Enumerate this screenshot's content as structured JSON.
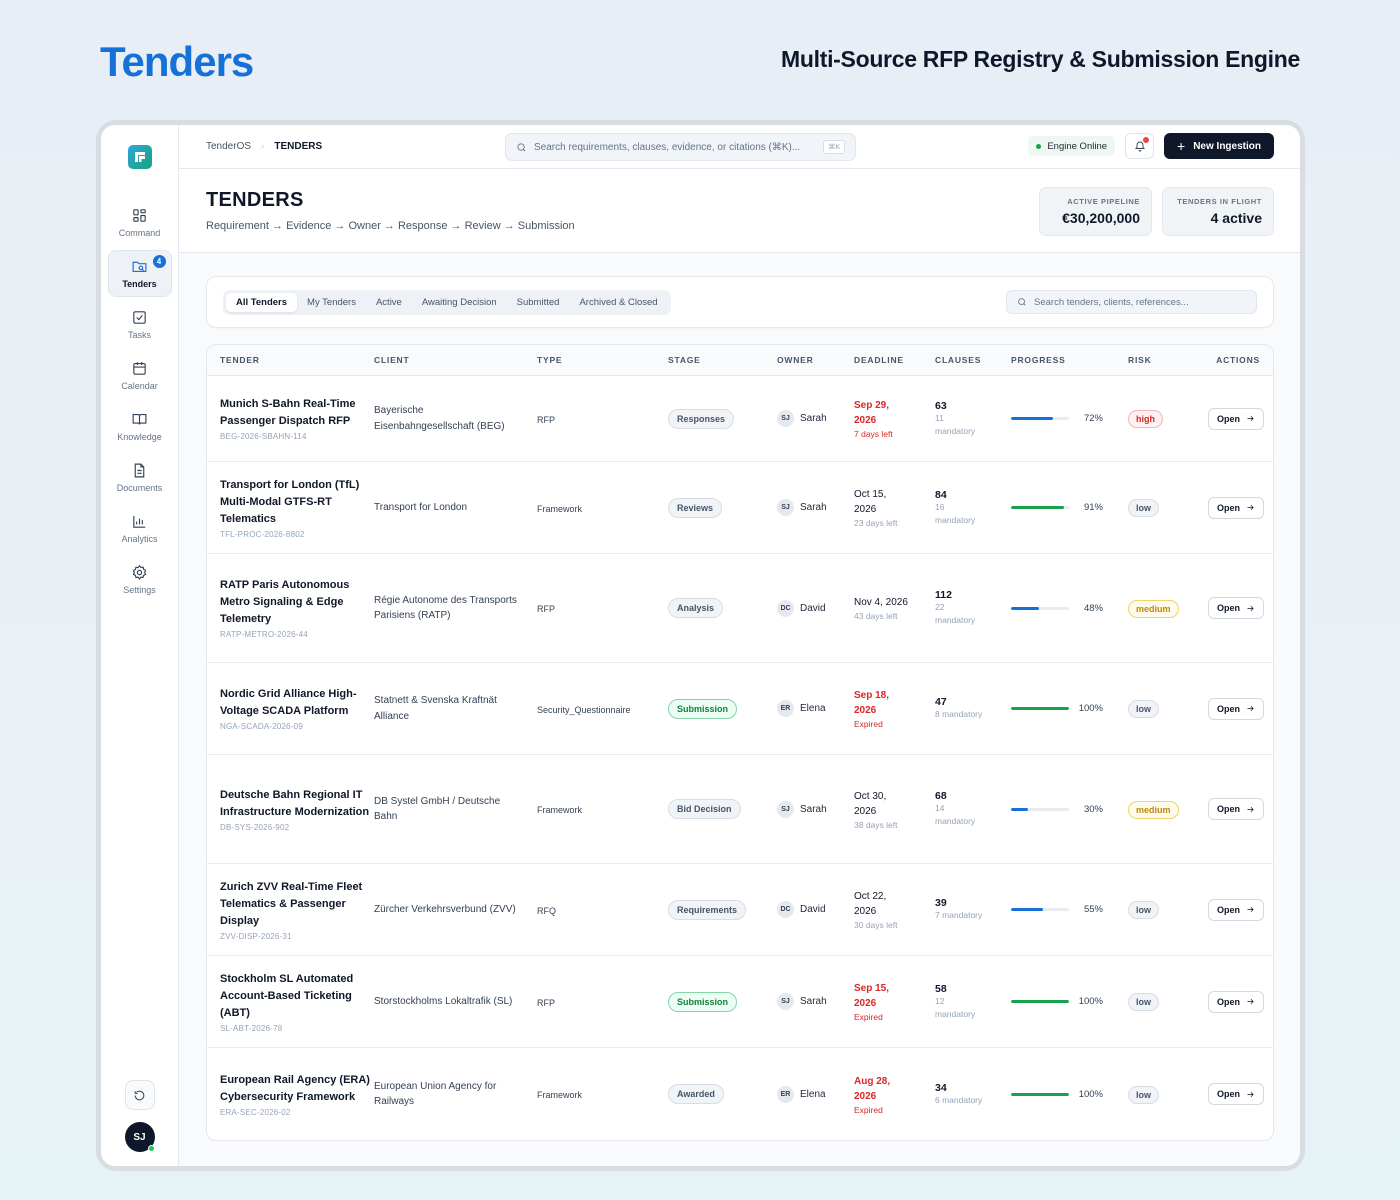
{
  "hero": {
    "title": "Tenders",
    "subtitle": "Multi-Source RFP Registry & Submission Engine"
  },
  "sidebar": {
    "items": [
      {
        "label": "Command",
        "icon": "grid-icon"
      },
      {
        "label": "Tenders",
        "icon": "folder-search-icon",
        "badge": "4",
        "active": true
      },
      {
        "label": "Tasks",
        "icon": "checkbox-icon"
      },
      {
        "label": "Calendar",
        "icon": "calendar-icon"
      },
      {
        "label": "Knowledge",
        "icon": "book-icon"
      },
      {
        "label": "Documents",
        "icon": "document-icon"
      },
      {
        "label": "Analytics",
        "icon": "bar-chart-icon"
      },
      {
        "label": "Settings",
        "icon": "gear-icon"
      }
    ],
    "user_initials": "SJ"
  },
  "topbar": {
    "breadcrumb_root": "TenderOS",
    "breadcrumb_current": "TENDERS",
    "search_placeholder": "Search requirements, clauses, evidence, or citations (⌘K)...",
    "search_shortcut": "⌘K",
    "engine_status": "Engine Online",
    "new_button": "New Ingestion"
  },
  "header": {
    "title": "TENDERS",
    "flow": "Requirement → Evidence → Owner → Response → Review → Submission",
    "kpis": [
      {
        "label": "ACTIVE PIPELINE",
        "value": "€30,200,000"
      },
      {
        "label": "TENDERS IN FLIGHT",
        "value": "4 active"
      }
    ]
  },
  "filters": {
    "tabs": [
      "All Tenders",
      "My Tenders",
      "Active",
      "Awaiting Decision",
      "Submitted",
      "Archived & Closed"
    ],
    "active_tab": "All Tenders",
    "search_placeholder": "Search tenders, clients, references..."
  },
  "table": {
    "columns": [
      "TENDER",
      "CLIENT",
      "TYPE",
      "STAGE",
      "OWNER",
      "DEADLINE",
      "CLAUSES",
      "PROGRESS",
      "RISK",
      "ACTIONS"
    ],
    "open_label": "Open",
    "rows": [
      {
        "name": "Munich S-Bahn Real-Time Passenger Dispatch RFP",
        "ref": "BEG-2026-SBAHN-114",
        "client": "Bayerische Eisenbahngesellschaft (BEG)",
        "type": "RFP",
        "stage": "Responses",
        "owner_initials": "SJ",
        "owner": "Sarah",
        "deadline": "Sep 29, 2026",
        "deadline_note": "7 days left",
        "urgent": true,
        "clauses": "63",
        "mandatory": "11 mandatory",
        "progress": 72,
        "risk": "high"
      },
      {
        "name": "Transport for London (TfL) Multi-Modal GTFS-RT Telematics",
        "ref": "TFL-PROC-2026-8802",
        "client": "Transport for London",
        "type": "Framework",
        "stage": "Reviews",
        "owner_initials": "SJ",
        "owner": "Sarah",
        "deadline": "Oct 15, 2026",
        "deadline_note": "23 days left",
        "urgent": false,
        "clauses": "84",
        "mandatory": "16 mandatory",
        "progress": 91,
        "risk": "low"
      },
      {
        "name": "RATP Paris Autonomous Metro Signaling & Edge Telemetry",
        "ref": "RATP-METRO-2026-44",
        "client": "Régie Autonome des Transports Parisiens (RATP)",
        "type": "RFP",
        "stage": "Analysis",
        "owner_initials": "DC",
        "owner": "David",
        "deadline": "Nov 4, 2026",
        "deadline_note": "43 days left",
        "urgent": false,
        "clauses": "112",
        "mandatory": "22 mandatory",
        "progress": 48,
        "risk": "medium"
      },
      {
        "name": "Nordic Grid Alliance High-Voltage SCADA Platform",
        "ref": "NGA-SCADA-2026-09",
        "client": "Statnett & Svenska Kraftnät Alliance",
        "type": "Security_Questionnaire",
        "stage": "Submission",
        "owner_initials": "ER",
        "owner": "Elena",
        "deadline": "Sep 18, 2026",
        "deadline_note": "Expired",
        "urgent": true,
        "clauses": "47",
        "mandatory": "8 mandatory",
        "progress": 100,
        "risk": "low"
      },
      {
        "name": "Deutsche Bahn Regional IT Infrastructure Modernization",
        "ref": "DB-SYS-2026-902",
        "client": "DB Systel GmbH / Deutsche Bahn",
        "type": "Framework",
        "stage": "Bid Decision",
        "owner_initials": "SJ",
        "owner": "Sarah",
        "deadline": "Oct 30, 2026",
        "deadline_note": "38 days left",
        "urgent": false,
        "clauses": "68",
        "mandatory": "14 mandatory",
        "progress": 30,
        "risk": "medium"
      },
      {
        "name": "Zurich ZVV Real-Time Fleet Telematics & Passenger Display",
        "ref": "ZVV-DISP-2026-31",
        "client": "Zürcher Verkehrsverbund (ZVV)",
        "type": "RFQ",
        "stage": "Requirements",
        "owner_initials": "DC",
        "owner": "David",
        "deadline": "Oct 22, 2026",
        "deadline_note": "30 days left",
        "urgent": false,
        "clauses": "39",
        "mandatory": "7 mandatory",
        "progress": 55,
        "risk": "low"
      },
      {
        "name": "Stockholm SL Automated Account-Based Ticketing (ABT)",
        "ref": "SL-ABT-2026-78",
        "client": "Storstockholms Lokaltrafik (SL)",
        "type": "RFP",
        "stage": "Submission",
        "owner_initials": "SJ",
        "owner": "Sarah",
        "deadline": "Sep 15, 2026",
        "deadline_note": "Expired",
        "urgent": true,
        "clauses": "58",
        "mandatory": "12 mandatory",
        "progress": 100,
        "risk": "low"
      },
      {
        "name": "European Rail Agency (ERA) Cybersecurity Framework",
        "ref": "ERA-SEC-2026-02",
        "client": "European Union Agency for Railways",
        "type": "Framework",
        "stage": "Awarded",
        "owner_initials": "ER",
        "owner": "Elena",
        "deadline": "Aug 28, 2026",
        "deadline_note": "Expired",
        "urgent": true,
        "clauses": "34",
        "mandatory": "6 mandatory",
        "progress": 100,
        "risk": "low"
      }
    ]
  },
  "colors": {
    "brand": "#1570d8",
    "progress_partial": "#1570d8",
    "progress_complete": "#16a34a",
    "danger": "#dc2626",
    "warning": "#c2860a"
  }
}
